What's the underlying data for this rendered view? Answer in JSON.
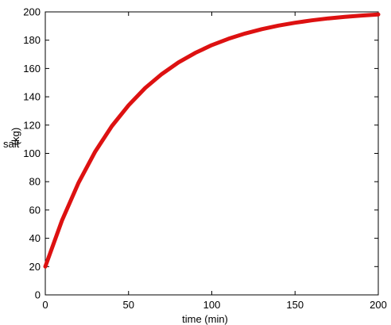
{
  "chart_data": {
    "type": "line",
    "title": "",
    "xlabel": "time (min)",
    "ylabel_word": "salt",
    "ylabel_unit": "(kg)",
    "xlim": [
      0,
      200
    ],
    "ylim": [
      0,
      200
    ],
    "xticks": [
      0,
      50,
      100,
      150,
      200
    ],
    "yticks": [
      0,
      20,
      40,
      60,
      80,
      100,
      120,
      140,
      160,
      180,
      200
    ],
    "grid": false,
    "legend": "none",
    "series": [
      {
        "color": "#dd1111",
        "x": [
          0,
          10,
          20,
          30,
          40,
          50,
          60,
          70,
          80,
          90,
          100,
          110,
          120,
          130,
          140,
          150,
          160,
          170,
          180,
          190,
          200
        ],
        "y": [
          20,
          52.6,
          79.3,
          101.3,
          119.3,
          134.0,
          146.2,
          156.1,
          164.3,
          171.0,
          176.5,
          181.0,
          184.7,
          187.8,
          190.3,
          192.3,
          194.0,
          195.4,
          196.5,
          197.4,
          198.2
        ]
      }
    ]
  }
}
